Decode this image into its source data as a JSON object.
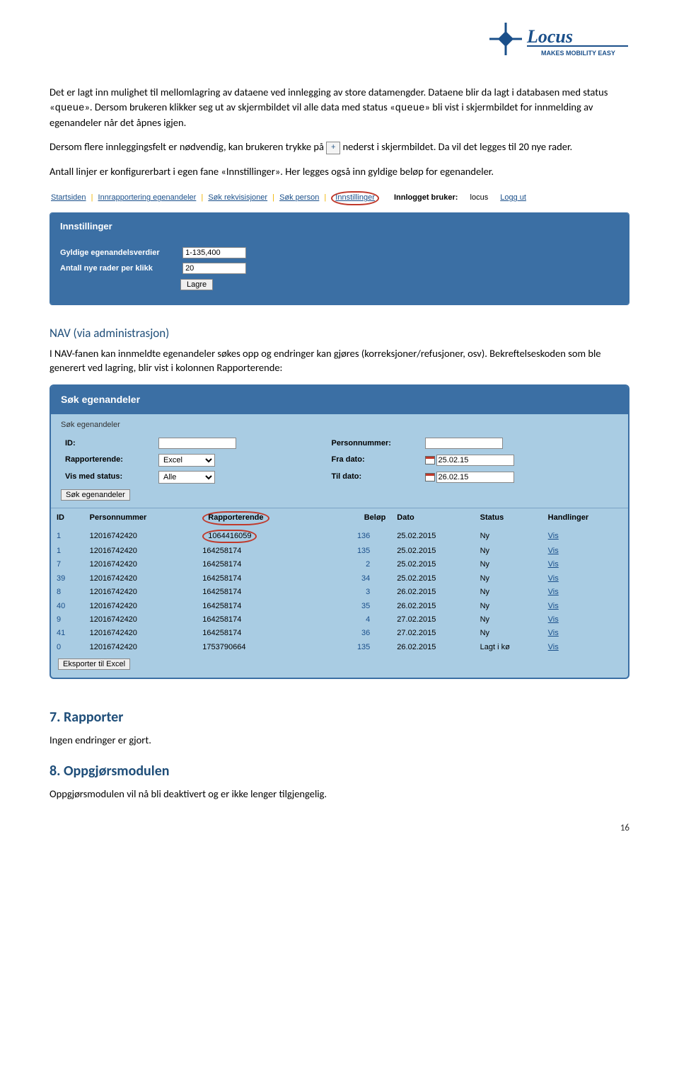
{
  "logo": {
    "name": "Locus",
    "tagline": "MAKES MOBILITY EASY"
  },
  "para1a": "Det er lagt inn mulighet til mellomlagring av dataene ved innlegging av store datamengder. Dataene blir da lagt i databasen med status «",
  "para1code": "queue",
  "para1b": "». Dersom brukeren klikker seg ut av skjermbildet vil alle data med status «",
  "para1c": "» bli vist i skjermbildet for innmelding av egenandeler når det åpnes igjen.",
  "para2a": "Dersom flere innleggingsfelt er nødvendig, kan brukeren trykke på ",
  "para2b": " nederst i skjermbildet. Da vil det legges til 20 nye rader.",
  "plus": "+",
  "para3": "Antall linjer er konfigurerbart i egen fane «Innstillinger». Her legges også inn gyldige beløp for egenandeler.",
  "nav": {
    "items": [
      "Startsiden",
      "Innrapportering egenandeler",
      "Søk rekvisisjoner",
      "Søk person",
      "Innstillinger"
    ],
    "loggedLabel": "Innlogget bruker:",
    "user": "locus",
    "logout": "Logg ut"
  },
  "settings": {
    "title": "Innstillinger",
    "rows": [
      {
        "label": "Gyldige egenandelsverdier",
        "value": "1-135,400"
      },
      {
        "label": "Antall nye rader per klikk",
        "value": "20"
      }
    ],
    "save": "Lagre"
  },
  "navHeading": "NAV (via administrasjon)",
  "navPara": "I NAV-fanen kan innmeldte egenandeler søkes opp og endringer kan gjøres (korreksjoner/refusjoner, osv). Bekreftelseskoden som ble generert ved lagring, blir vist i kolonnen Rapporterende:",
  "search": {
    "title": "Søk egenandeler",
    "sub": "Søk egenandeler",
    "labels": {
      "id": "ID:",
      "pn": "Personnummer:",
      "rap": "Rapporterende:",
      "fra": "Fra dato:",
      "vis": "Vis med status:",
      "til": "Til dato:"
    },
    "rapValue": "Excel",
    "visValue": "Alle",
    "fraDate": "25.02.15",
    "tilDate": "26.02.15",
    "searchBtn": "Søk egenandeler",
    "cols": [
      "ID",
      "Personnummer",
      "Rapporterende",
      "Beløp",
      "Dato",
      "Status",
      "Handlinger"
    ],
    "vis": "Vis",
    "rows": [
      {
        "id": "1",
        "pn": "12016742420",
        "rap": "1064416059",
        "belop": "136",
        "dato": "25.02.2015",
        "status": "Ny",
        "circled": true
      },
      {
        "id": "1",
        "pn": "12016742420",
        "rap": "164258174",
        "belop": "135",
        "dato": "25.02.2015",
        "status": "Ny"
      },
      {
        "id": "7",
        "pn": "12016742420",
        "rap": "164258174",
        "belop": "2",
        "dato": "25.02.2015",
        "status": "Ny"
      },
      {
        "id": "39",
        "pn": "12016742420",
        "rap": "164258174",
        "belop": "34",
        "dato": "25.02.2015",
        "status": "Ny"
      },
      {
        "id": "8",
        "pn": "12016742420",
        "rap": "164258174",
        "belop": "3",
        "dato": "26.02.2015",
        "status": "Ny"
      },
      {
        "id": "40",
        "pn": "12016742420",
        "rap": "164258174",
        "belop": "35",
        "dato": "26.02.2015",
        "status": "Ny"
      },
      {
        "id": "9",
        "pn": "12016742420",
        "rap": "164258174",
        "belop": "4",
        "dato": "27.02.2015",
        "status": "Ny"
      },
      {
        "id": "41",
        "pn": "12016742420",
        "rap": "164258174",
        "belop": "36",
        "dato": "27.02.2015",
        "status": "Ny"
      },
      {
        "id": "0",
        "pn": "12016742420",
        "rap": "1753790664",
        "belop": "135",
        "dato": "26.02.2015",
        "status": "Lagt i kø"
      }
    ],
    "export": "Eksporter til Excel"
  },
  "sec7": {
    "title": "7. Rapporter",
    "body": "Ingen endringer er gjort."
  },
  "sec8": {
    "title": "8. Oppgjørsmodulen",
    "body": "Oppgjørsmodulen vil nå bli deaktivert og er ikke lenger tilgjengelig."
  },
  "pageNum": "16"
}
